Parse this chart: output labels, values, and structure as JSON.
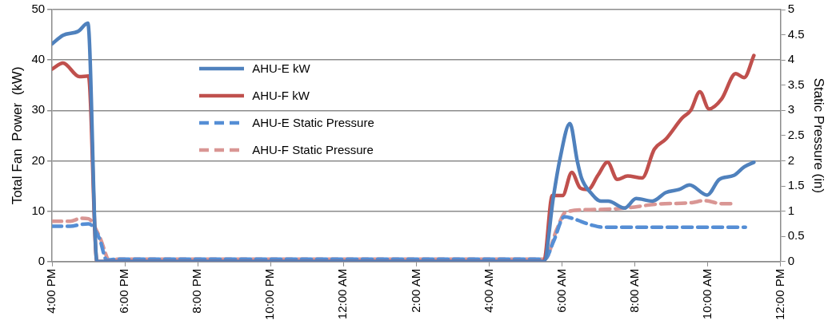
{
  "chart_data": {
    "type": "line",
    "ylabel": "Total Fan  Power  (kW)",
    "y2label": "Static Pressure (in)",
    "xlim": [
      "2000-01-01T16:00",
      "2000-01-02T12:00"
    ],
    "xticks": [
      {
        "value": "2000-01-01T16:00",
        "label": "4:00 PM"
      },
      {
        "value": "2000-01-01T18:00",
        "label": "6:00 PM"
      },
      {
        "value": "2000-01-01T20:00",
        "label": "8:00 PM"
      },
      {
        "value": "2000-01-01T22:00",
        "label": "10:00 PM"
      },
      {
        "value": "2000-01-02T00:00",
        "label": "12:00 AM"
      },
      {
        "value": "2000-01-02T02:00",
        "label": "2:00 AM"
      },
      {
        "value": "2000-01-02T04:00",
        "label": "4:00 AM"
      },
      {
        "value": "2000-01-02T06:00",
        "label": "6:00 AM"
      },
      {
        "value": "2000-01-02T08:00",
        "label": "8:00 AM"
      },
      {
        "value": "2000-01-02T10:00",
        "label": "10:00 AM"
      },
      {
        "value": "2000-01-02T12:00",
        "label": "12:00 PM"
      }
    ],
    "ylim": [
      0,
      50
    ],
    "yticks": [
      0,
      10,
      20,
      30,
      40,
      50
    ],
    "y2lim": [
      0,
      5
    ],
    "y2ticks": [
      0,
      0.5,
      1,
      1.5,
      2,
      2.5,
      3,
      3.5,
      4,
      4.5,
      5
    ],
    "grid": "y",
    "legend": "top left",
    "marker": "none",
    "series": [
      {
        "name": "AHU-E kW",
        "color": "#4f81bd",
        "line_style": "solid",
        "x": [
          "2000-01-01T16:00",
          "2000-01-01T16:18",
          "2000-01-01T16:43",
          "2000-01-01T16:59",
          "2000-01-01T17:14",
          "2000-01-02T05:30",
          "2000-01-02T05:46",
          "2000-01-02T05:56",
          "2000-01-02T06:13",
          "2000-01-02T06:25",
          "2000-01-02T06:32",
          "2000-01-02T06:47",
          "2000-01-02T07:04",
          "2000-01-02T07:16",
          "2000-01-02T07:43",
          "2000-01-02T08:02",
          "2000-01-02T08:29",
          "2000-01-02T08:51",
          "2000-01-02T09:13",
          "2000-01-02T09:30",
          "2000-01-02T09:59",
          "2000-01-02T10:19",
          "2000-01-02T10:43",
          "2000-01-02T11:00",
          "2000-01-02T11:16"
        ],
        "values": [
          43.2,
          44.9,
          45.7,
          47.3,
          0,
          0,
          13,
          20,
          27.4,
          20,
          16.6,
          13.7,
          12,
          12,
          10.6,
          12.5,
          12,
          13.7,
          14.3,
          15.2,
          13.2,
          16.3,
          17.1,
          18.8,
          19.7
        ]
      },
      {
        "name": "AHU-F kW",
        "color": "#c0504d",
        "line_style": "solid",
        "x": [
          "2000-01-01T16:00",
          "2000-01-01T16:18",
          "2000-01-01T16:45",
          "2000-01-01T17:00",
          "2000-01-01T17:14",
          "2000-01-02T05:30",
          "2000-01-02T05:44",
          "2000-01-02T06:01",
          "2000-01-02T06:16",
          "2000-01-02T06:30",
          "2000-01-02T06:43",
          "2000-01-02T06:59",
          "2000-01-02T07:15",
          "2000-01-02T07:31",
          "2000-01-02T07:48",
          "2000-01-02T08:12",
          "2000-01-02T08:32",
          "2000-01-02T08:51",
          "2000-01-02T09:18",
          "2000-01-02T09:32",
          "2000-01-02T09:47",
          "2000-01-02T10:02",
          "2000-01-02T10:23",
          "2000-01-02T10:46",
          "2000-01-02T11:00",
          "2000-01-02T11:16"
        ],
        "values": [
          38.2,
          39.4,
          36.7,
          36.8,
          0,
          0,
          13.1,
          13.1,
          17.7,
          14.6,
          14.3,
          17.1,
          19.7,
          16.3,
          17,
          16.6,
          22.3,
          24.3,
          28.5,
          30,
          33.7,
          30.3,
          32.3,
          37.3,
          36.5,
          40.9
        ]
      },
      {
        "name": "AHU-E Static Pressure",
        "color": "#558ed5",
        "line_style": "dashed",
        "axis": "y2",
        "x": [
          "2000-01-01T16:00",
          "2000-01-01T16:30",
          "2000-01-01T16:48",
          "2000-01-01T17:00",
          "2000-01-01T17:18",
          "2000-01-01T17:30",
          "2000-01-01T17:48",
          "2000-01-02T05:24",
          "2000-01-02T05:32",
          "2000-01-02T05:46",
          "2000-01-02T06:04",
          "2000-01-02T06:16",
          "2000-01-02T06:50",
          "2000-01-02T07:09",
          "2000-01-02T11:02"
        ],
        "values": [
          0.7,
          0.7,
          0.74,
          0.75,
          0.46,
          0.03,
          0.05,
          0.05,
          0.05,
          0.4,
          0.89,
          0.86,
          0.72,
          0.68,
          0.68
        ]
      },
      {
        "name": "AHU-F Static Pressure",
        "color": "#d99694",
        "line_style": "dashed",
        "axis": "y2",
        "x": [
          "2000-01-01T16:00",
          "2000-01-01T16:30",
          "2000-01-01T16:48",
          "2000-01-01T17:00",
          "2000-01-01T17:18",
          "2000-01-01T17:36",
          "2000-01-01T17:48",
          "2000-01-02T05:24",
          "2000-01-02T05:32",
          "2000-01-02T05:51",
          "2000-01-02T06:06",
          "2000-01-02T06:45",
          "2000-01-02T07:43",
          "2000-01-02T08:36",
          "2000-01-02T09:34",
          "2000-01-02T09:54",
          "2000-01-02T10:23",
          "2000-01-02T10:46"
        ],
        "values": [
          0.8,
          0.8,
          0.86,
          0.85,
          0.5,
          0.0,
          0.05,
          0.05,
          0.05,
          0.63,
          0.98,
          1.03,
          1.06,
          1.14,
          1.17,
          1.21,
          1.15,
          1.15
        ]
      }
    ]
  }
}
